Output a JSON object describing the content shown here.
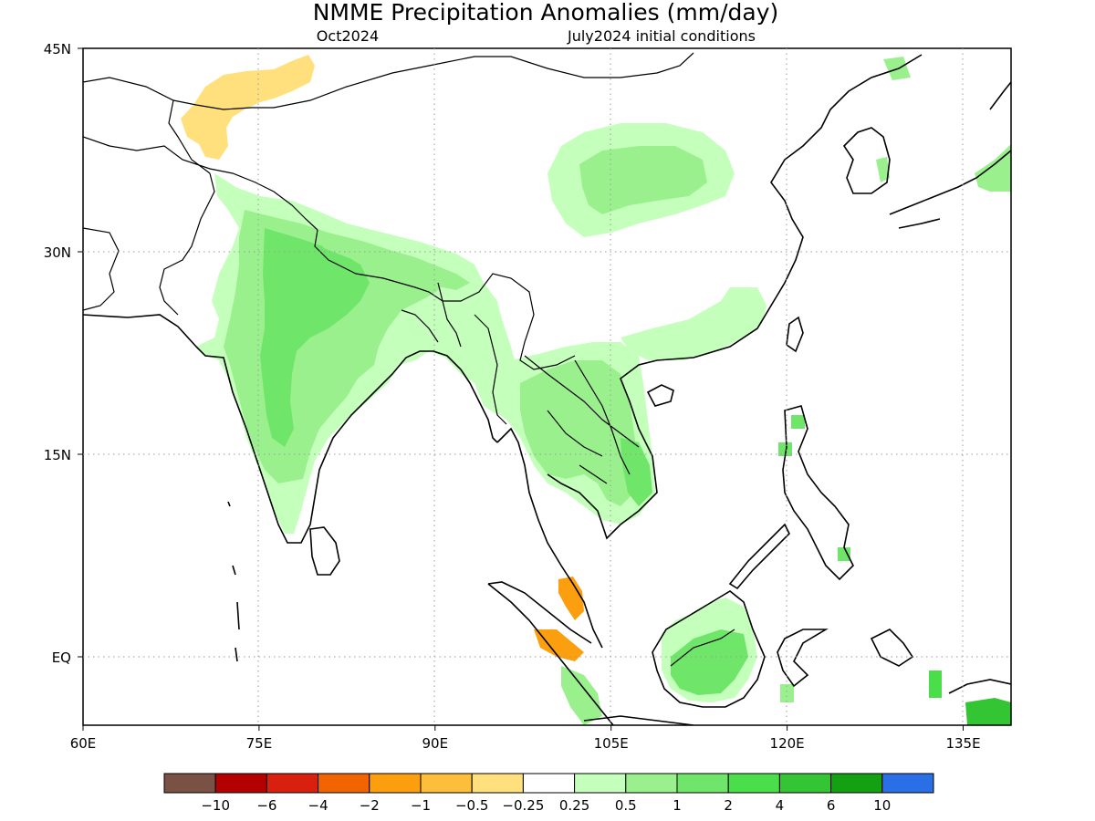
{
  "figure": {
    "title": "NMME Precipitation Anomalies (mm/day)",
    "valid_month": "Oct2024",
    "initial_conditions": "July2024 initial conditions"
  },
  "axes": {
    "lon_ticks": [
      "60E",
      "75E",
      "90E",
      "105E",
      "120E",
      "135E"
    ],
    "lat_ticks": [
      "45N",
      "30N",
      "15N",
      "EQ"
    ],
    "lon_range": [
      60,
      139
    ],
    "lat_range": [
      -5,
      45
    ],
    "grid": "dotted"
  },
  "colorbar": {
    "colors": [
      "#7a5245",
      "#b40000",
      "#d9200f",
      "#f26400",
      "#fb9f0e",
      "#fdbe3c",
      "#ffe07c",
      "#ffffff",
      "#c5ffbc",
      "#9bf08e",
      "#6fe66a",
      "#4ade4a",
      "#33c533",
      "#13a013",
      "#2a6fe6"
    ],
    "tick_labels": [
      "−10",
      "−6",
      "−4",
      "−2",
      "−1",
      "−0.5",
      "−0.25",
      "0.25",
      "0.5",
      "1",
      "2",
      "4",
      "6",
      "10"
    ]
  },
  "anomaly_regions": {
    "light_green": "#c5ffbc",
    "green": "#9bf08e",
    "mid_green": "#6fe66a",
    "bright_green": "#4ade4a",
    "dark_green": "#33c533",
    "light_orange": "#ffe07c",
    "orange": "#fdbe3c",
    "dark_orange": "#fb9f0e"
  }
}
